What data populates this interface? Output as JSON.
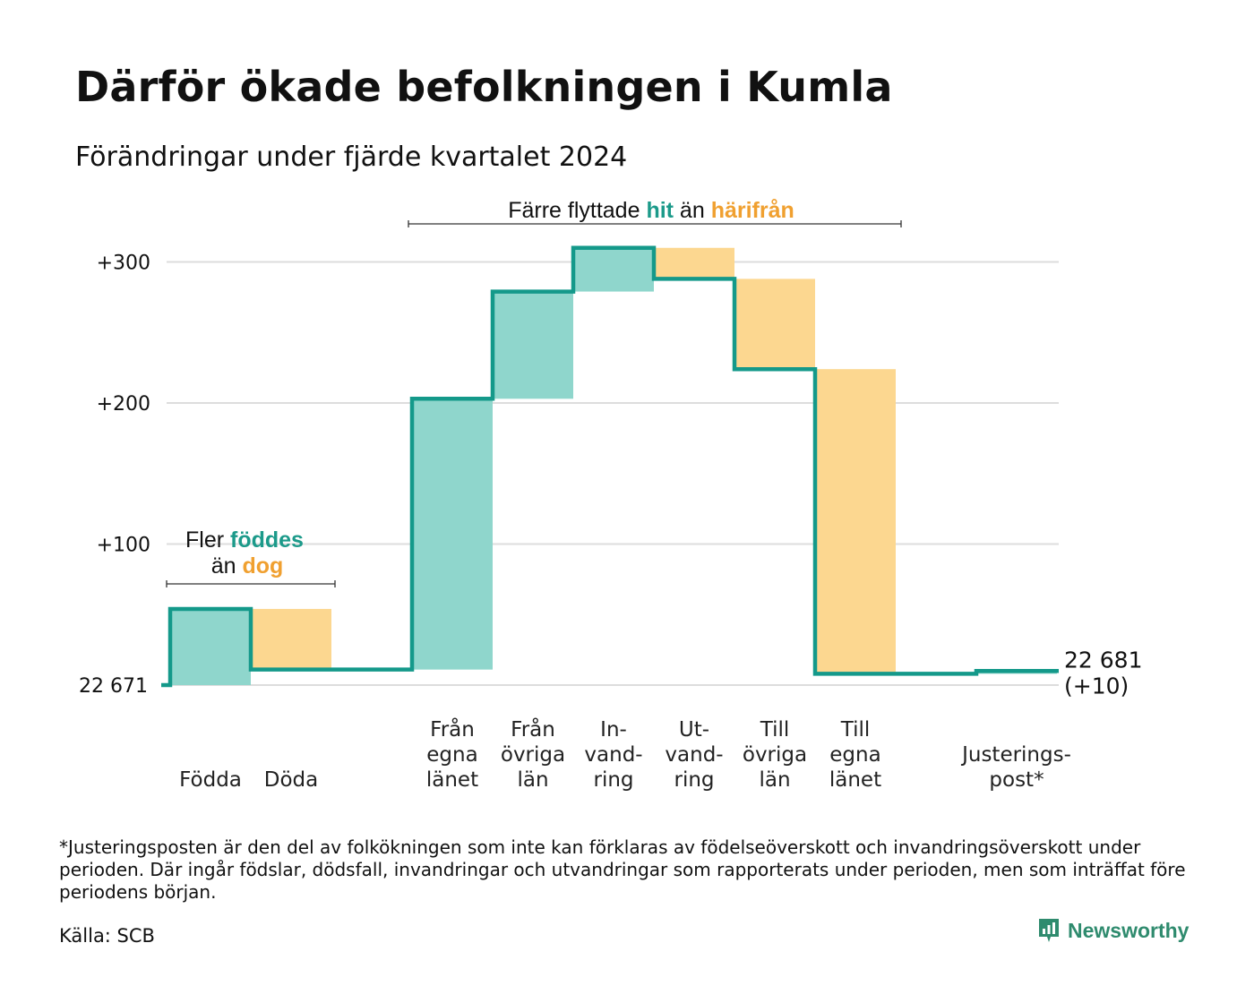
{
  "title": "Därför ökade befolkningen i Kumla",
  "subtitle": "Förändringar under fjärde kvartalet 2024",
  "footnote": "*Justeringsposten är den del av folkökningen som inte kan förklaras av födelseöverskott och invandringsöverskott under perioden. Där ingår födslar, dödsfall, invandringar och utvandringar som rapporterats under perioden, men som inträffat före periodens början.",
  "source": "Källa: SCB",
  "brand": "Newsworthy",
  "colors": {
    "increase_fill": "#8fd6cc",
    "decrease_fill": "#fcd790",
    "line": "#14998a",
    "green_text": "#1c9a8a",
    "orange_text": "#f0a030",
    "grid": "#dddddd",
    "brand": "#2f8b6e"
  },
  "annotations": {
    "births": {
      "line1_prefix": "Fler ",
      "line1_highlight": "föddes",
      "line2_prefix": "än ",
      "line2_highlight": "dog"
    },
    "migration": {
      "prefix": "Färre flyttade ",
      "highlight1": "hit",
      "middle": " än ",
      "highlight2": "härifrån"
    }
  },
  "chart_data": {
    "type": "waterfall",
    "start_value": 22671,
    "start_label": "22 671",
    "end_value": 22681,
    "end_label_line1": "22 681",
    "end_label_line2": "(+10)",
    "yticks": [
      {
        "value": 100,
        "label": "+100"
      },
      {
        "value": 200,
        "label": "+200"
      },
      {
        "value": 300,
        "label": "+300"
      }
    ],
    "ylim": [
      0,
      320
    ],
    "grid": true,
    "steps": [
      {
        "label": [
          "Födda"
        ],
        "change": 54,
        "type": "increase"
      },
      {
        "label": [
          "Döda"
        ],
        "change": -43,
        "type": "decrease"
      },
      {
        "label": [
          ""
        ],
        "change": 0,
        "type": "none"
      },
      {
        "label": [
          "Från",
          "egna",
          "länet"
        ],
        "change": 192,
        "type": "increase"
      },
      {
        "label": [
          "Från",
          "övriga",
          "län"
        ],
        "change": 76,
        "type": "increase"
      },
      {
        "label": [
          "In-",
          "vand-",
          "ring"
        ],
        "change": 31,
        "type": "increase"
      },
      {
        "label": [
          "Ut-",
          "vand-",
          "ring"
        ],
        "change": -22,
        "type": "decrease"
      },
      {
        "label": [
          "Till",
          "övriga",
          "län"
        ],
        "change": -64,
        "type": "decrease"
      },
      {
        "label": [
          "Till",
          "egna",
          "länet"
        ],
        "change": -216,
        "type": "decrease"
      },
      {
        "label": [
          ""
        ],
        "change": 0,
        "type": "none"
      },
      {
        "label": [
          "Justerings-",
          "post*"
        ],
        "change": 2,
        "type": "increase"
      }
    ]
  }
}
